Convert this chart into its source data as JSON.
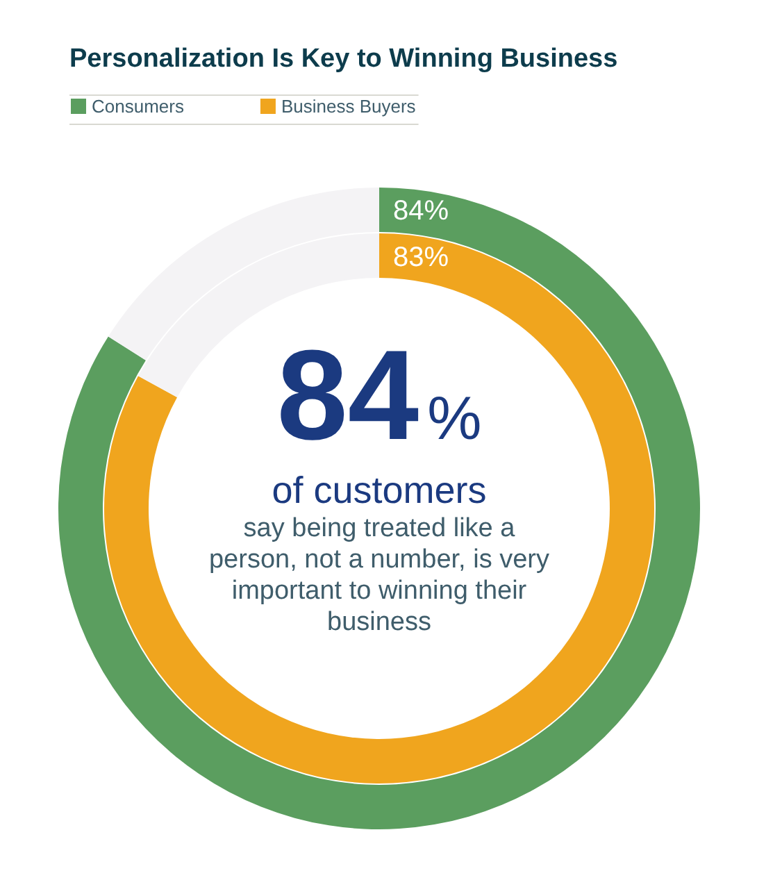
{
  "chart_data": [
    {
      "type": "donut",
      "title": "Personalization Is Key to Winning Business",
      "categories": [
        null,
        null
      ],
      "series": [
        {
          "name": "Consumers",
          "color": "#5b9e5f",
          "values": [
            84,
            16
          ],
          "colors": [
            "#5b9e5f",
            "#f4f3f5"
          ],
          "value_labels": [
            "84%",
            null
          ]
        }
      ],
      "legend": "top left",
      "annotations": [
        "84%",
        "of customers",
        "say being treated like a person, not a number, is very important to winning their business"
      ]
    },
    {
      "type": "donut",
      "categories": [
        null,
        null
      ],
      "series": [
        {
          "name": "Business Buyers",
          "color": "#f0a51e",
          "values": [
            83,
            17
          ],
          "colors": [
            "#f0a51e",
            "#f4f3f5"
          ],
          "value_labels": [
            "83%",
            null
          ]
        }
      ],
      "legend": "top left"
    }
  ]
}
